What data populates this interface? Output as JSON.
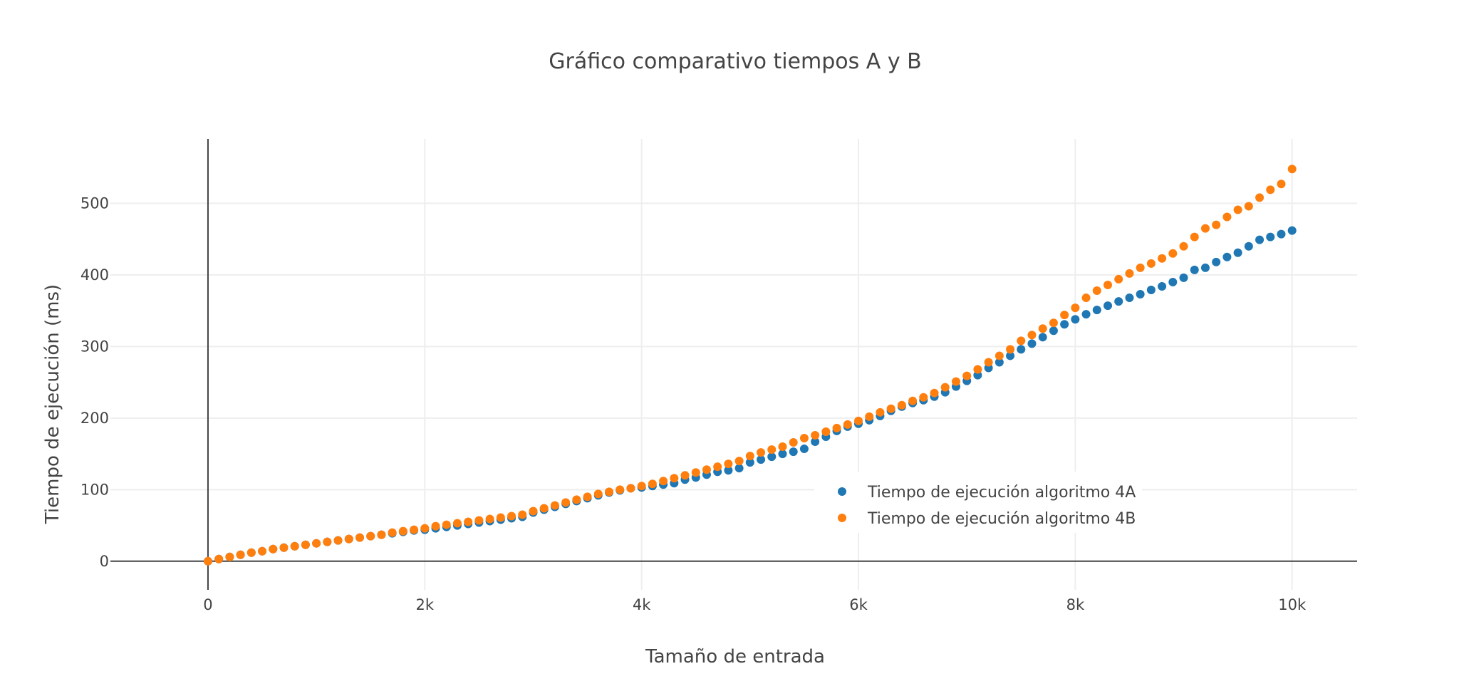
{
  "chart_data": {
    "type": "scatter",
    "title": "Gráfico comparativo tiempos A y B",
    "xlabel": "Tamaño de entrada",
    "ylabel": "Tiempo de ejecución (ms)",
    "xlim": [
      -900,
      10600
    ],
    "ylim": [
      -40,
      590
    ],
    "x_ticks": [
      0,
      2000,
      4000,
      6000,
      8000,
      10000
    ],
    "x_tick_labels": [
      "0",
      "2k",
      "4k",
      "6k",
      "8k",
      "10k"
    ],
    "y_ticks": [
      0,
      100,
      200,
      300,
      400,
      500
    ],
    "y_tick_labels": [
      "0",
      "100",
      "200",
      "300",
      "400",
      "500"
    ],
    "grid": true,
    "legend_position": "lower-right",
    "x": [
      0,
      100,
      200,
      300,
      400,
      500,
      600,
      700,
      800,
      900,
      1000,
      1100,
      1200,
      1300,
      1400,
      1500,
      1600,
      1700,
      1800,
      1900,
      2000,
      2100,
      2200,
      2300,
      2400,
      2500,
      2600,
      2700,
      2800,
      2900,
      3000,
      3100,
      3200,
      3300,
      3400,
      3500,
      3600,
      3700,
      3800,
      3900,
      4000,
      4100,
      4200,
      4300,
      4400,
      4500,
      4600,
      4700,
      4800,
      4900,
      5000,
      5100,
      5200,
      5300,
      5400,
      5500,
      5600,
      5700,
      5800,
      5900,
      6000,
      6100,
      6200,
      6300,
      6400,
      6500,
      6600,
      6700,
      6800,
      6900,
      7000,
      7100,
      7200,
      7300,
      7400,
      7500,
      7600,
      7700,
      7800,
      7900,
      8000,
      8100,
      8200,
      8300,
      8400,
      8500,
      8600,
      8700,
      8800,
      8900,
      9000,
      9100,
      9200,
      9300,
      9400,
      9500,
      9600,
      9700,
      9800,
      9900,
      10000
    ],
    "series": [
      {
        "name": "Tiempo de ejecución algoritmo 4A",
        "color": "#1f77b4",
        "values": [
          0,
          3,
          6,
          9,
          12,
          14,
          17,
          19,
          21,
          23,
          25,
          27,
          29,
          31,
          33,
          35,
          37,
          39,
          41,
          43,
          44,
          46,
          48,
          50,
          52,
          54,
          56,
          58,
          60,
          62,
          68,
          72,
          76,
          80,
          84,
          88,
          92,
          96,
          99,
          102,
          103,
          105,
          107,
          109,
          114,
          117,
          121,
          125,
          127,
          130,
          138,
          142,
          146,
          150,
          153,
          157,
          167,
          174,
          182,
          188,
          192,
          197,
          203,
          210,
          216,
          221,
          225,
          230,
          236,
          244,
          252,
          260,
          270,
          278,
          287,
          296,
          304,
          313,
          322,
          331,
          338,
          345,
          351,
          357,
          363,
          368,
          373,
          379,
          384,
          390,
          396,
          407,
          410,
          418,
          425,
          431,
          440,
          449,
          453,
          457,
          462
        ]
      },
      {
        "name": "Tiempo de ejecución algoritmo 4B",
        "color": "#ff7f0e",
        "values": [
          0,
          3,
          6,
          9,
          12,
          14,
          17,
          19,
          21,
          23,
          25,
          27,
          29,
          31,
          33,
          35,
          37,
          40,
          42,
          44,
          46,
          49,
          51,
          53,
          55,
          57,
          59,
          61,
          63,
          65,
          70,
          74,
          78,
          82,
          86,
          90,
          94,
          97,
          100,
          102,
          105,
          108,
          112,
          116,
          120,
          124,
          128,
          132,
          136,
          140,
          147,
          152,
          156,
          160,
          166,
          172,
          176,
          181,
          186,
          191,
          196,
          202,
          208,
          213,
          218,
          224,
          229,
          235,
          243,
          251,
          259,
          268,
          278,
          287,
          296,
          308,
          316,
          325,
          333,
          344,
          354,
          368,
          378,
          386,
          394,
          402,
          410,
          416,
          423,
          430,
          440,
          453,
          465,
          470,
          481,
          491,
          496,
          508,
          519,
          527,
          548
        ]
      }
    ]
  }
}
